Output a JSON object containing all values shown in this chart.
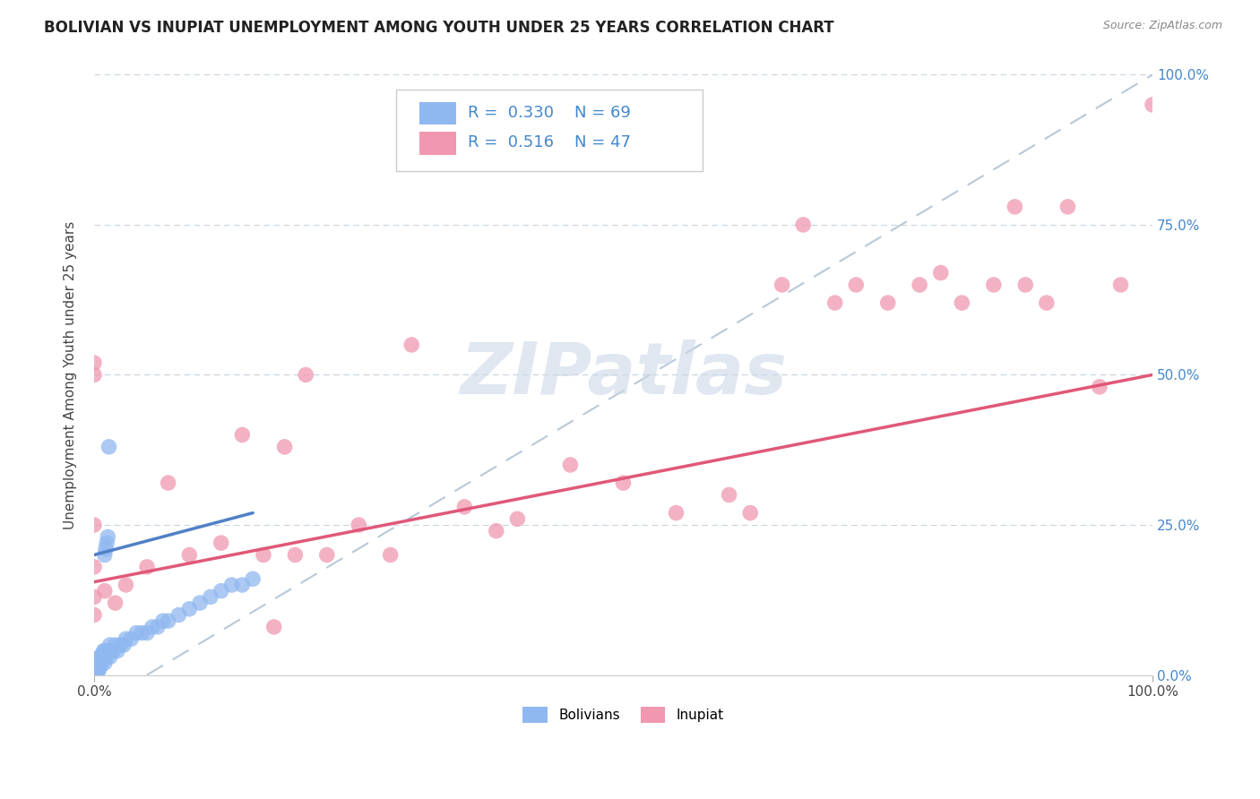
{
  "title": "BOLIVIAN VS INUPIAT UNEMPLOYMENT AMONG YOUTH UNDER 25 YEARS CORRELATION CHART",
  "source": "Source: ZipAtlas.com",
  "ylabel": "Unemployment Among Youth under 25 years",
  "xlim": [
    0,
    1
  ],
  "ylim": [
    0,
    1
  ],
  "ytick_labels": [
    "0.0%",
    "25.0%",
    "50.0%",
    "75.0%",
    "100.0%"
  ],
  "ytick_vals": [
    0,
    0.25,
    0.5,
    0.75,
    1.0
  ],
  "watermark_text": "ZIPatlas",
  "bolivian_color": "#90b8f0",
  "inupiat_color": "#f098b0",
  "bolivian_line_color": "#5080c8",
  "inupiat_line_color": "#e05878",
  "ref_line_color": "#b8c8d8",
  "title_fontsize": 12,
  "label_fontsize": 11,
  "tick_fontsize": 11,
  "legend_r_color": "#4488cc",
  "bolivians_N": 69,
  "inupiat_N": 47,
  "bolivians_R": 0.33,
  "inupiat_R": 0.516,
  "bolivian_line_x": [
    0.0,
    0.15
  ],
  "bolivian_line_y": [
    0.2,
    0.27
  ],
  "inupiat_line_x": [
    0.0,
    1.0
  ],
  "inupiat_line_y": [
    0.155,
    0.5
  ],
  "ref_line_x": [
    0.05,
    1.0
  ],
  "ref_line_y": [
    0.0,
    1.0
  ],
  "bolivians_x": [
    0.0,
    0.0,
    0.0,
    0.0,
    0.0,
    0.0,
    0.0,
    0.0,
    0.0,
    0.0,
    0.001,
    0.001,
    0.002,
    0.002,
    0.003,
    0.003,
    0.004,
    0.004,
    0.005,
    0.005,
    0.006,
    0.006,
    0.007,
    0.008,
    0.009,
    0.01,
    0.01,
    0.012,
    0.013,
    0.015,
    0.015,
    0.018,
    0.02,
    0.022,
    0.025,
    0.028,
    0.03,
    0.035,
    0.04,
    0.045,
    0.05,
    0.055,
    0.06,
    0.065,
    0.07,
    0.08,
    0.09,
    0.1,
    0.11,
    0.12,
    0.13,
    0.14,
    0.15,
    0.0,
    0.0,
    0.001,
    0.002,
    0.003,
    0.004,
    0.005,
    0.006,
    0.007,
    0.008,
    0.009,
    0.01,
    0.011,
    0.012,
    0.013,
    0.014
  ],
  "bolivians_y": [
    0.0,
    0.0,
    0.0,
    0.0,
    0.0,
    0.0,
    0.01,
    0.01,
    0.02,
    0.02,
    0.0,
    0.01,
    0.0,
    0.01,
    0.0,
    0.02,
    0.01,
    0.02,
    0.01,
    0.03,
    0.02,
    0.03,
    0.02,
    0.03,
    0.04,
    0.02,
    0.04,
    0.03,
    0.04,
    0.03,
    0.05,
    0.04,
    0.05,
    0.04,
    0.05,
    0.05,
    0.06,
    0.06,
    0.07,
    0.07,
    0.07,
    0.08,
    0.08,
    0.09,
    0.09,
    0.1,
    0.11,
    0.12,
    0.13,
    0.14,
    0.15,
    0.15,
    0.16,
    0.0,
    0.005,
    0.005,
    0.01,
    0.01,
    0.015,
    0.015,
    0.02,
    0.025,
    0.03,
    0.035,
    0.2,
    0.21,
    0.22,
    0.23,
    0.38
  ],
  "inupiat_x": [
    0.0,
    0.0,
    0.0,
    0.0,
    0.0,
    0.0,
    0.01,
    0.02,
    0.03,
    0.05,
    0.07,
    0.09,
    0.12,
    0.14,
    0.16,
    0.17,
    0.18,
    0.19,
    0.2,
    0.22,
    0.25,
    0.28,
    0.3,
    0.35,
    0.38,
    0.4,
    0.45,
    0.5,
    0.55,
    0.6,
    0.62,
    0.65,
    0.67,
    0.7,
    0.72,
    0.75,
    0.78,
    0.8,
    0.82,
    0.85,
    0.87,
    0.88,
    0.9,
    0.92,
    0.95,
    0.97,
    1.0
  ],
  "inupiat_y": [
    0.1,
    0.13,
    0.18,
    0.25,
    0.5,
    0.52,
    0.14,
    0.12,
    0.15,
    0.18,
    0.32,
    0.2,
    0.22,
    0.4,
    0.2,
    0.08,
    0.38,
    0.2,
    0.5,
    0.2,
    0.25,
    0.2,
    0.55,
    0.28,
    0.24,
    0.26,
    0.35,
    0.32,
    0.27,
    0.3,
    0.27,
    0.65,
    0.75,
    0.62,
    0.65,
    0.62,
    0.65,
    0.67,
    0.62,
    0.65,
    0.78,
    0.65,
    0.62,
    0.78,
    0.48,
    0.65,
    0.95
  ]
}
